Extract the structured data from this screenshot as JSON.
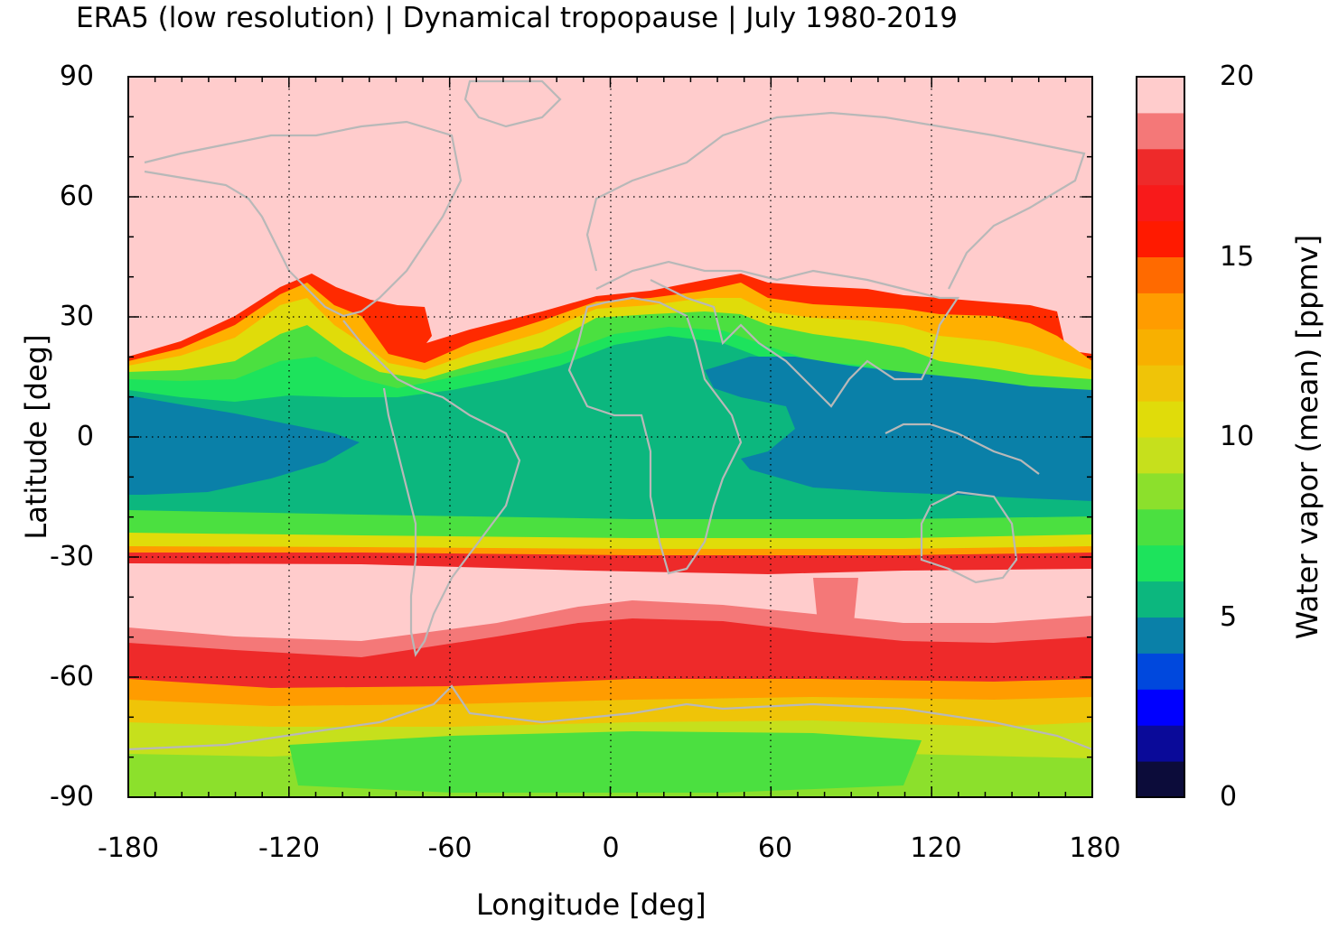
{
  "title": "ERA5 (low resolution) | Dynamical tropopause | July 1980-2019",
  "xaxis": {
    "label": "Longitude [deg]",
    "range": [
      -180,
      180
    ],
    "ticks": [
      "-180",
      "-120",
      "-60",
      "0",
      "60",
      "120",
      "180"
    ]
  },
  "yaxis": {
    "label": "Latitude [deg]",
    "range": [
      -90,
      90
    ],
    "ticks": [
      "90",
      "60",
      "30",
      "0",
      "-30",
      "-60",
      "-90"
    ]
  },
  "colorbar": {
    "label": "Water vapor (mean) [ppmv]",
    "range": [
      0,
      20
    ],
    "ticks": [
      "20",
      "15",
      "10",
      "5",
      "0"
    ],
    "levels": [
      "#0c0c3a",
      "#0a0a99",
      "#0000ff",
      "#0048dd",
      "#0a80a8",
      "#0cb77e",
      "#1de35c",
      "#4be040",
      "#8ce02c",
      "#c6e01c",
      "#e0dc0a",
      "#efc408",
      "#f8b000",
      "#ff9c00",
      "#ff6a00",
      "#ff1a00",
      "#f81a1a",
      "#ee2a2a",
      "#f47878",
      "#ffcccc"
    ]
  },
  "chart_data": {
    "type": "heatmap",
    "title": "ERA5 (low resolution) | Dynamical tropopause | July 1980-2019",
    "xlabel": "Longitude [deg]",
    "ylabel": "Latitude [deg]",
    "xlim": [
      -180,
      180
    ],
    "ylim": [
      -90,
      90
    ],
    "colorbar_label": "Water vapor (mean) [ppmv]",
    "clim": [
      0,
      20
    ],
    "grid": true,
    "coastlines": true,
    "latitude_bands_approx_ppmv": [
      {
        "lat_range": [
          60,
          90
        ],
        "value": 20
      },
      {
        "lat_range": [
          35,
          60
        ],
        "value": 20
      },
      {
        "lat_range": [
          15,
          35
        ],
        "value": 10
      },
      {
        "lat_range": [
          -15,
          15
        ],
        "value": 5
      },
      {
        "lat_range": [
          -28,
          -15
        ],
        "value": 8
      },
      {
        "lat_range": [
          -33,
          -28
        ],
        "value": 16
      },
      {
        "lat_range": [
          -48,
          -33
        ],
        "value": 20
      },
      {
        "lat_range": [
          -62,
          -48
        ],
        "value": 16
      },
      {
        "lat_range": [
          -72,
          -62
        ],
        "value": 12
      },
      {
        "lat_range": [
          -90,
          -72
        ],
        "value": 9
      }
    ]
  }
}
